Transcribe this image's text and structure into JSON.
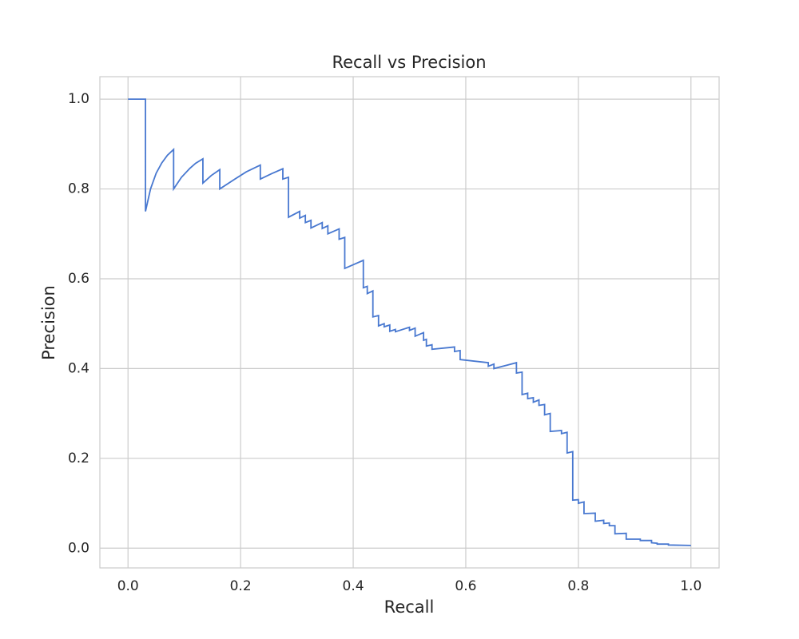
{
  "chart_data": {
    "type": "line",
    "title": "Recall vs Precision",
    "x_label": "Recall",
    "y_label": "Precision",
    "color": "#4878d0",
    "grid": true,
    "xlim": [
      -0.05,
      1.05
    ],
    "ylim": [
      -0.044,
      1.05
    ],
    "xticks": [
      {
        "value": 0,
        "label": "0.0"
      },
      0.2,
      0.4,
      0.6,
      0.8,
      {
        "value": 1,
        "label": "1.0"
      }
    ],
    "yticks": [
      {
        "value": 0,
        "label": "0.0"
      },
      0.2,
      0.4,
      0.6,
      0.8,
      {
        "value": 1,
        "label": "1.0"
      }
    ],
    "x": [
      0,
      0.031,
      0.031,
      0.04,
      0.05,
      0.06,
      0.07,
      0.081,
      0.081,
      0.095,
      0.11,
      0.12,
      0.133,
      0.133,
      0.148,
      0.163,
      0.163,
      0.19,
      0.21,
      0.235,
      0.235,
      0.255,
      0.275,
      0.275,
      0.285,
      0.285,
      0.305,
      0.305,
      0.315,
      0.315,
      0.325,
      0.325,
      0.345,
      0.345,
      0.355,
      0.355,
      0.375,
      0.375,
      0.385,
      0.385,
      0.418,
      0.418,
      0.425,
      0.425,
      0.435,
      0.435,
      0.445,
      0.445,
      0.455,
      0.455,
      0.465,
      0.465,
      0.475,
      0.475,
      0.5,
      0.5,
      0.51,
      0.51,
      0.525,
      0.525,
      0.53,
      0.53,
      0.54,
      0.54,
      0.58,
      0.58,
      0.59,
      0.59,
      0.64,
      0.64,
      0.65,
      0.65,
      0.69,
      0.69,
      0.7,
      0.7,
      0.71,
      0.71,
      0.72,
      0.72,
      0.73,
      0.73,
      0.74,
      0.74,
      0.75,
      0.75,
      0.77,
      0.77,
      0.78,
      0.78,
      0.79,
      0.79,
      0.8,
      0.8,
      0.81,
      0.81,
      0.83,
      0.83,
      0.845,
      0.845,
      0.855,
      0.855,
      0.865,
      0.865,
      0.885,
      0.885,
      0.91,
      0.91,
      0.93,
      0.93,
      0.94,
      0.94,
      0.96,
      0.96,
      1.0
    ],
    "values": [
      1.0,
      1.0,
      0.75,
      0.8,
      0.835,
      0.858,
      0.875,
      0.888,
      0.8,
      0.826,
      0.846,
      0.857,
      0.867,
      0.813,
      0.83,
      0.843,
      0.8,
      0.822,
      0.838,
      0.853,
      0.822,
      0.834,
      0.845,
      0.822,
      0.826,
      0.737,
      0.75,
      0.735,
      0.741,
      0.725,
      0.73,
      0.713,
      0.725,
      0.712,
      0.718,
      0.7,
      0.711,
      0.688,
      0.692,
      0.623,
      0.641,
      0.58,
      0.583,
      0.567,
      0.573,
      0.515,
      0.518,
      0.495,
      0.5,
      0.493,
      0.497,
      0.483,
      0.487,
      0.482,
      0.492,
      0.485,
      0.49,
      0.472,
      0.48,
      0.463,
      0.465,
      0.45,
      0.453,
      0.443,
      0.448,
      0.438,
      0.44,
      0.42,
      0.413,
      0.405,
      0.41,
      0.4,
      0.413,
      0.39,
      0.392,
      0.342,
      0.345,
      0.333,
      0.335,
      0.325,
      0.33,
      0.318,
      0.32,
      0.297,
      0.3,
      0.26,
      0.262,
      0.255,
      0.258,
      0.212,
      0.215,
      0.107,
      0.108,
      0.1,
      0.103,
      0.077,
      0.078,
      0.06,
      0.062,
      0.055,
      0.056,
      0.05,
      0.05,
      0.032,
      0.033,
      0.02,
      0.02,
      0.017,
      0.017,
      0.012,
      0.011,
      0.009,
      0.009,
      0.007,
      0.006
    ]
  }
}
